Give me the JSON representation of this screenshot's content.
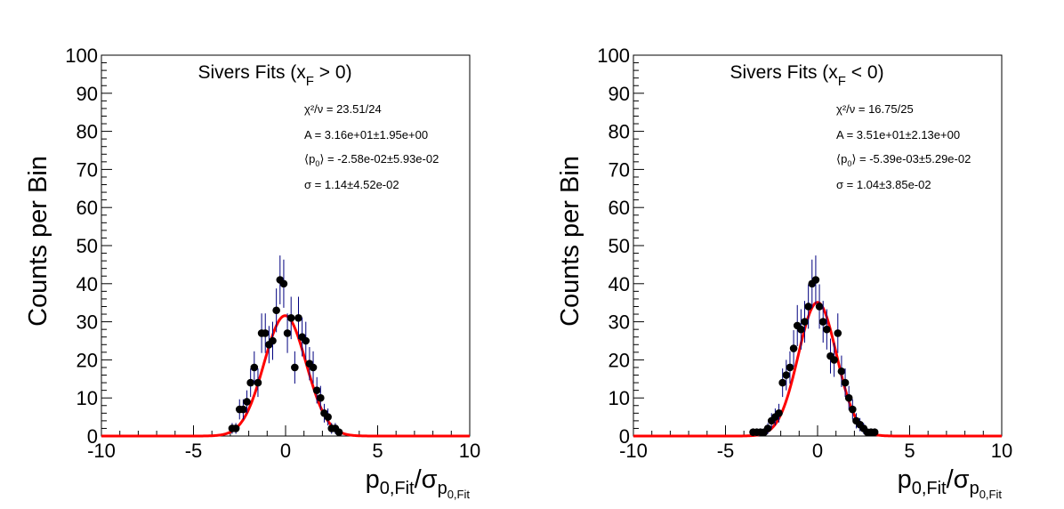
{
  "chart_data": [
    {
      "type": "scatter",
      "title": "Sivers Fits (x",
      "title_sub": "F",
      "title_end": " > 0)",
      "ylabel": "Counts per Bin",
      "xlabel": "p",
      "xlabel_sub1": "0,Fit",
      "xlabel_slash": "/σ",
      "xlabel_sub2": "p",
      "xlabel_sub3": "0,Fit",
      "xlim": [
        -10,
        10
      ],
      "ylim": [
        0,
        100
      ],
      "xticks": [
        "-10",
        "-5",
        "0",
        "5",
        "10"
      ],
      "yticks": [
        "0",
        "10",
        "20",
        "30",
        "40",
        "50",
        "60",
        "70",
        "80",
        "90",
        "100"
      ],
      "stats": {
        "chi2": "χ²/ν = 23.51/24",
        "amp": "A = 3.16e+01±1.95e+00",
        "mean_pre": "⟨p",
        "mean_sub": "0",
        "mean_post": "⟩ = -2.58e-02±5.93e-02",
        "sigma": "σ = 1.14±4.52e-02"
      },
      "fit": {
        "A": 31.6,
        "mu": -0.0258,
        "sigma": 1.14
      },
      "points": [
        {
          "x": -2.9,
          "y": 2
        },
        {
          "x": -2.7,
          "y": 2
        },
        {
          "x": -2.5,
          "y": 7
        },
        {
          "x": -2.3,
          "y": 7
        },
        {
          "x": -2.1,
          "y": 9
        },
        {
          "x": -1.9,
          "y": 14
        },
        {
          "x": -1.7,
          "y": 18
        },
        {
          "x": -1.5,
          "y": 14
        },
        {
          "x": -1.3,
          "y": 27
        },
        {
          "x": -1.1,
          "y": 27
        },
        {
          "x": -0.9,
          "y": 24
        },
        {
          "x": -0.7,
          "y": 25
        },
        {
          "x": -0.5,
          "y": 33
        },
        {
          "x": -0.3,
          "y": 41
        },
        {
          "x": -0.1,
          "y": 40
        },
        {
          "x": 0.1,
          "y": 27
        },
        {
          "x": 0.3,
          "y": 31
        },
        {
          "x": 0.5,
          "y": 18
        },
        {
          "x": 0.7,
          "y": 31
        },
        {
          "x": 0.9,
          "y": 26
        },
        {
          "x": 1.1,
          "y": 25
        },
        {
          "x": 1.3,
          "y": 19
        },
        {
          "x": 1.5,
          "y": 18
        },
        {
          "x": 1.7,
          "y": 12
        },
        {
          "x": 1.9,
          "y": 10
        },
        {
          "x": 2.1,
          "y": 6
        },
        {
          "x": 2.3,
          "y": 5
        },
        {
          "x": 2.5,
          "y": 2
        },
        {
          "x": 2.7,
          "y": 2
        },
        {
          "x": 2.9,
          "y": 1
        }
      ]
    },
    {
      "type": "scatter",
      "title": "Sivers Fits (x",
      "title_sub": "F",
      "title_end": " < 0)",
      "ylabel": "Counts per Bin",
      "xlabel": "p",
      "xlabel_sub1": "0,Fit",
      "xlabel_slash": "/σ",
      "xlabel_sub2": "p",
      "xlabel_sub3": "0,Fit",
      "xlim": [
        -10,
        10
      ],
      "ylim": [
        0,
        100
      ],
      "xticks": [
        "-10",
        "-5",
        "0",
        "5",
        "10"
      ],
      "yticks": [
        "0",
        "10",
        "20",
        "30",
        "40",
        "50",
        "60",
        "70",
        "80",
        "90",
        "100"
      ],
      "stats": {
        "chi2": "χ²/ν = 16.75/25",
        "amp": "A = 3.51e+01±2.13e+00",
        "mean_pre": "⟨p",
        "mean_sub": "0",
        "mean_post": "⟩ = -5.39e-03±5.29e-02",
        "sigma": "σ = 1.04±3.85e-02"
      },
      "fit": {
        "A": 35.1,
        "mu": -0.00539,
        "sigma": 1.04
      },
      "points": [
        {
          "x": -3.5,
          "y": 1
        },
        {
          "x": -3.3,
          "y": 1
        },
        {
          "x": -3.1,
          "y": 1
        },
        {
          "x": -2.9,
          "y": 1
        },
        {
          "x": -2.7,
          "y": 2
        },
        {
          "x": -2.5,
          "y": 4
        },
        {
          "x": -2.3,
          "y": 5
        },
        {
          "x": -2.1,
          "y": 6
        },
        {
          "x": -1.9,
          "y": 14
        },
        {
          "x": -1.7,
          "y": 16
        },
        {
          "x": -1.5,
          "y": 18
        },
        {
          "x": -1.3,
          "y": 23
        },
        {
          "x": -1.1,
          "y": 29
        },
        {
          "x": -0.9,
          "y": 28
        },
        {
          "x": -0.7,
          "y": 30
        },
        {
          "x": -0.5,
          "y": 34
        },
        {
          "x": -0.3,
          "y": 40
        },
        {
          "x": -0.1,
          "y": 41
        },
        {
          "x": 0.1,
          "y": 34
        },
        {
          "x": 0.3,
          "y": 30
        },
        {
          "x": 0.5,
          "y": 28
        },
        {
          "x": 0.7,
          "y": 21
        },
        {
          "x": 0.9,
          "y": 20
        },
        {
          "x": 1.1,
          "y": 27
        },
        {
          "x": 1.3,
          "y": 17
        },
        {
          "x": 1.5,
          "y": 14
        },
        {
          "x": 1.7,
          "y": 10
        },
        {
          "x": 1.9,
          "y": 7
        },
        {
          "x": 2.1,
          "y": 4
        },
        {
          "x": 2.3,
          "y": 3
        },
        {
          "x": 2.5,
          "y": 2
        },
        {
          "x": 2.7,
          "y": 1
        },
        {
          "x": 2.9,
          "y": 1
        },
        {
          "x": 3.1,
          "y": 1
        }
      ]
    }
  ]
}
